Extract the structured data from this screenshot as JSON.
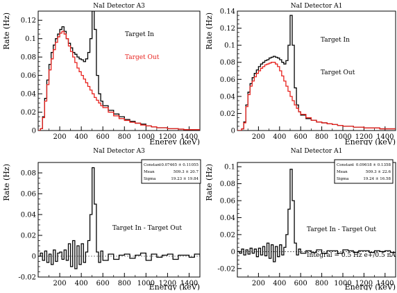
{
  "chart_data": [
    {
      "type": "line",
      "title": "NaI Detector A3",
      "xlabel": "Enerev (keV)",
      "ylabel": "Rate (Hz)",
      "xlim": [
        0,
        1500
      ],
      "ylim": [
        0,
        0.13
      ],
      "xticks": [
        200,
        400,
        600,
        800,
        1000,
        1200,
        1400
      ],
      "yticks": [
        0,
        0.02,
        0.04,
        0.06,
        0.08,
        0.1,
        0.12
      ],
      "grid": false,
      "annotations": [
        {
          "text": "Target In",
          "color": "#000000"
        },
        {
          "text": "Target Out",
          "color": "#e8201c"
        }
      ],
      "series": [
        {
          "color": "#000000",
          "x": [
            0,
            20,
            40,
            60,
            80,
            100,
            120,
            140,
            160,
            180,
            200,
            220,
            240,
            260,
            280,
            300,
            320,
            340,
            360,
            380,
            400,
            420,
            440,
            460,
            480,
            500,
            520,
            540,
            560,
            580,
            600,
            650,
            700,
            750,
            800,
            850,
            900,
            950,
            1000,
            1050,
            1100,
            1150,
            1200,
            1250,
            1300,
            1350,
            1400,
            1450,
            1500
          ],
          "y": [
            0,
            0.002,
            0.015,
            0.035,
            0.055,
            0.072,
            0.085,
            0.093,
            0.1,
            0.105,
            0.11,
            0.113,
            0.108,
            0.1,
            0.095,
            0.09,
            0.085,
            0.083,
            0.08,
            0.078,
            0.077,
            0.075,
            0.078,
            0.085,
            0.1,
            0.13,
            0.11,
            0.06,
            0.04,
            0.032,
            0.027,
            0.022,
            0.018,
            0.015,
            0.012,
            0.01,
            0.008,
            0.007,
            0.005,
            0.004,
            0.003,
            0.003,
            0.002,
            0.002,
            0.0015,
            0.001,
            0.001,
            0.001,
            0.001
          ]
        },
        {
          "color": "#e8201c",
          "x": [
            0,
            20,
            40,
            60,
            80,
            100,
            120,
            140,
            160,
            180,
            200,
            220,
            240,
            260,
            280,
            300,
            320,
            340,
            360,
            380,
            400,
            420,
            440,
            460,
            480,
            500,
            520,
            540,
            560,
            580,
            600,
            650,
            700,
            750,
            800,
            850,
            900,
            950,
            1000,
            1050,
            1100,
            1150,
            1200,
            1250,
            1300,
            1350,
            1400,
            1450,
            1500
          ],
          "y": [
            0,
            0.002,
            0.014,
            0.032,
            0.05,
            0.066,
            0.078,
            0.088,
            0.096,
            0.102,
            0.106,
            0.108,
            0.105,
            0.1,
            0.092,
            0.086,
            0.08,
            0.074,
            0.068,
            0.064,
            0.06,
            0.056,
            0.052,
            0.048,
            0.044,
            0.04,
            0.036,
            0.033,
            0.03,
            0.027,
            0.025,
            0.02,
            0.016,
            0.013,
            0.011,
            0.009,
            0.008,
            0.006,
            0.005,
            0.004,
            0.003,
            0.003,
            0.002,
            0.002,
            0.0015,
            0.001,
            0.001,
            0.001,
            0.001
          ]
        }
      ]
    },
    {
      "type": "line",
      "title": "NaI Detector A1",
      "xlabel": "Energy (keV)",
      "ylabel": "Rate (Hz)",
      "xlim": [
        0,
        1500
      ],
      "ylim": [
        0,
        0.14
      ],
      "xticks": [
        200,
        400,
        600,
        800,
        1000,
        1200,
        1400
      ],
      "yticks": [
        0,
        0.02,
        0.04,
        0.06,
        0.08,
        0.1,
        0.12,
        0.14
      ],
      "grid": false,
      "annotations": [
        {
          "text": "Target In",
          "color": "#000000"
        },
        {
          "text": "Target Out",
          "color": "#000000"
        }
      ],
      "series": [
        {
          "color": "#000000",
          "x": [
            0,
            20,
            40,
            60,
            80,
            100,
            120,
            140,
            160,
            180,
            200,
            220,
            240,
            260,
            280,
            300,
            320,
            340,
            360,
            380,
            400,
            420,
            440,
            460,
            480,
            500,
            520,
            540,
            560,
            580,
            600,
            650,
            700,
            750,
            800,
            850,
            900,
            950,
            1000,
            1050,
            1100,
            1150,
            1200,
            1250,
            1300,
            1350,
            1400,
            1450,
            1500
          ],
          "y": [
            0,
            0,
            0.002,
            0.01,
            0.03,
            0.045,
            0.055,
            0.062,
            0.067,
            0.071,
            0.075,
            0.078,
            0.08,
            0.082,
            0.083,
            0.085,
            0.086,
            0.087,
            0.086,
            0.085,
            0.083,
            0.08,
            0.078,
            0.082,
            0.1,
            0.135,
            0.1,
            0.05,
            0.03,
            0.022,
            0.018,
            0.014,
            0.012,
            0.01,
            0.009,
            0.008,
            0.007,
            0.006,
            0.005,
            0.005,
            0.004,
            0.004,
            0.003,
            0.003,
            0.003,
            0.002,
            0.002,
            0.002,
            0.002
          ]
        },
        {
          "color": "#e8201c",
          "x": [
            0,
            20,
            40,
            60,
            80,
            100,
            120,
            140,
            160,
            180,
            200,
            220,
            240,
            260,
            280,
            300,
            320,
            340,
            360,
            380,
            400,
            420,
            440,
            460,
            480,
            500,
            520,
            540,
            560,
            580,
            600,
            650,
            700,
            750,
            800,
            850,
            900,
            950,
            1000,
            1050,
            1100,
            1150,
            1200,
            1250,
            1300,
            1350,
            1400,
            1450,
            1500
          ],
          "y": [
            0,
            0,
            0.002,
            0.009,
            0.028,
            0.042,
            0.052,
            0.058,
            0.063,
            0.067,
            0.07,
            0.073,
            0.075,
            0.077,
            0.078,
            0.079,
            0.08,
            0.08,
            0.078,
            0.075,
            0.07,
            0.064,
            0.058,
            0.052,
            0.046,
            0.04,
            0.035,
            0.03,
            0.026,
            0.022,
            0.019,
            0.015,
            0.012,
            0.01,
            0.009,
            0.008,
            0.007,
            0.006,
            0.005,
            0.005,
            0.004,
            0.004,
            0.003,
            0.003,
            0.003,
            0.002,
            0.002,
            0.002,
            0.002
          ]
        }
      ]
    },
    {
      "type": "line",
      "title": "NaI Detector A3",
      "xlabel": "Energy (keV)",
      "ylabel": "Rate (Hz)",
      "xlim": [
        0,
        1500
      ],
      "ylim": [
        -0.02,
        0.09
      ],
      "xticks": [
        200,
        400,
        600,
        800,
        1000,
        1200,
        1400
      ],
      "yticks": [
        -0.02,
        0,
        0.02,
        0.04,
        0.06,
        0.08
      ],
      "grid": false,
      "annotations": [
        {
          "text": "Target In - Target Out",
          "color": "#000000"
        }
      ],
      "stats_box": [
        {
          "label": "Constant",
          "value": "0.07465 ± 0.11055"
        },
        {
          "label": "Mean",
          "value": "509.3 ± 20.7"
        },
        {
          "label": "Sigma",
          "value": "19.23 ± 19.84"
        }
      ],
      "series": [
        {
          "color": "#000000",
          "x": [
            0,
            20,
            40,
            60,
            80,
            100,
            120,
            140,
            160,
            180,
            200,
            220,
            240,
            260,
            280,
            300,
            320,
            340,
            360,
            380,
            400,
            420,
            440,
            460,
            480,
            500,
            520,
            540,
            560,
            580,
            600,
            650,
            700,
            750,
            800,
            850,
            900,
            950,
            1000,
            1050,
            1100,
            1150,
            1200,
            1250,
            1300,
            1350,
            1400,
            1450,
            1500
          ],
          "y": [
            0,
            0.003,
            -0.004,
            0.005,
            -0.006,
            0.002,
            -0.008,
            0.006,
            -0.005,
            0.003,
            0.004,
            -0.003,
            0.006,
            -0.004,
            0.012,
            -0.01,
            0.015,
            -0.012,
            0.01,
            -0.008,
            0.012,
            -0.006,
            0.004,
            0.015,
            0.04,
            0.085,
            0.05,
            0.004,
            -0.006,
            0.005,
            -0.004,
            0.002,
            -0.003,
            0.001,
            0.002,
            -0.002,
            0.001,
            0.003,
            -0.004,
            0.002,
            -0.001,
            0.001,
            0.002,
            -0.003,
            0.001,
            0.001,
            -0.001,
            0.002,
            0
          ]
        }
      ]
    },
    {
      "type": "line",
      "title": "NaI Detector A1",
      "xlabel": "Energy (keV)",
      "ylabel": "Rate (Hz)",
      "xlim": [
        0,
        1500
      ],
      "ylim": [
        -0.03,
        0.105
      ],
      "xticks": [
        200,
        400,
        600,
        800,
        1000,
        1200,
        1400
      ],
      "yticks": [
        -0.02,
        0,
        0.02,
        0.04,
        0.06,
        0.08,
        0.1
      ],
      "grid": false,
      "annotations": [
        {
          "text": "Target In - Target Out",
          "color": "#000000"
        },
        {
          "text": "Integral = 0.5 Hz e+/0.5 nA e-",
          "color": "#000000"
        }
      ],
      "stats_box": [
        {
          "label": "Constant",
          "value": "0.09618 ± 0.1358"
        },
        {
          "label": "Mean",
          "value": "509.3 ± 22.6"
        },
        {
          "label": "Sigma",
          "value": "19.24 ± 16.58"
        }
      ],
      "series": [
        {
          "color": "#000000",
          "x": [
            0,
            20,
            40,
            60,
            80,
            100,
            120,
            140,
            160,
            180,
            200,
            220,
            240,
            260,
            280,
            300,
            320,
            340,
            360,
            380,
            400,
            420,
            440,
            460,
            480,
            500,
            520,
            540,
            560,
            580,
            600,
            650,
            700,
            750,
            800,
            850,
            900,
            950,
            1000,
            1050,
            1100,
            1150,
            1200,
            1250,
            1300,
            1350,
            1400,
            1450,
            1500
          ],
          "y": [
            0,
            -0.002,
            0.003,
            -0.004,
            0.002,
            -0.003,
            0.004,
            -0.002,
            0.003,
            -0.006,
            0.004,
            -0.004,
            0.006,
            -0.005,
            0.01,
            -0.008,
            0.008,
            -0.012,
            0.006,
            -0.006,
            0.008,
            -0.004,
            0.005,
            0.02,
            0.05,
            0.097,
            0.06,
            0.01,
            -0.004,
            0.003,
            -0.002,
            0.001,
            -0.001,
            0.002,
            -0.002,
            0.001,
            0.001,
            -0.002,
            0.002,
            0.001,
            -0.001,
            0.001,
            0.001,
            -0.001,
            0.001,
            0,
            0.001,
            -0.001,
            0
          ]
        }
      ]
    }
  ]
}
